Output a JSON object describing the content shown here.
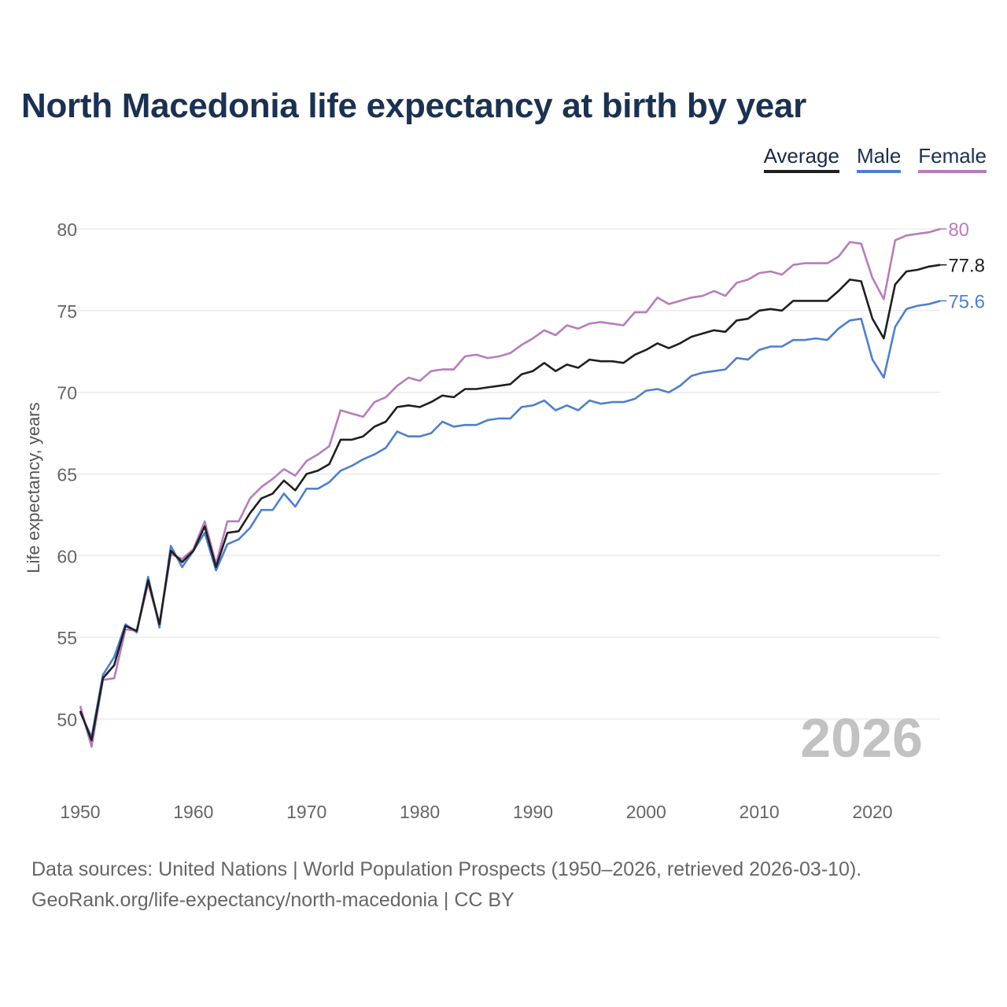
{
  "title": "North Macedonia life expectancy at birth by year",
  "footer": {
    "line1": "Data sources: United Nations | World Population Prospects (1950–2026, retrieved 2026-03-10).",
    "line2": "GeoRank.org/life-expectancy/north-macedonia | CC BY"
  },
  "chart_data": {
    "type": "line",
    "title": "North Macedonia life expectancy at birth by year",
    "xlabel": "",
    "ylabel": "Life expectancy, years",
    "xlim": [
      1950,
      2026
    ],
    "ylim": [
      46,
      82
    ],
    "xticks": [
      1950,
      1960,
      1970,
      1980,
      1990,
      2000,
      2010,
      2020
    ],
    "yticks": [
      50,
      55,
      60,
      65,
      70,
      75,
      80
    ],
    "grid": true,
    "legend_position": "top-right",
    "year_watermark": "2026",
    "x_start": 1950,
    "series": [
      {
        "name": "Average",
        "color": "#1f1f1f",
        "end_label": "77.8",
        "values": [
          50.5,
          48.7,
          52.5,
          53.3,
          55.7,
          55.4,
          58.5,
          55.8,
          60.3,
          59.6,
          60.3,
          61.8,
          59.3,
          61.4,
          61.5,
          62.6,
          63.5,
          63.8,
          64.6,
          64.0,
          65.0,
          65.2,
          65.6,
          67.1,
          67.1,
          67.3,
          67.9,
          68.2,
          69.1,
          69.2,
          69.1,
          69.4,
          69.8,
          69.7,
          70.2,
          70.2,
          70.3,
          70.4,
          70.5,
          71.1,
          71.3,
          71.8,
          71.3,
          71.7,
          71.5,
          72.0,
          71.9,
          71.9,
          71.8,
          72.3,
          72.6,
          73.0,
          72.7,
          73.0,
          73.4,
          73.6,
          73.8,
          73.7,
          74.4,
          74.5,
          75.0,
          75.1,
          75.0,
          75.6,
          75.6,
          75.6,
          75.6,
          76.2,
          76.9,
          76.8,
          74.5,
          73.3,
          76.6,
          77.4,
          77.5,
          77.7,
          77.8
        ]
      },
      {
        "name": "Male",
        "color": "#4f7fcc",
        "end_label": "75.6",
        "values": [
          50.4,
          48.9,
          52.7,
          53.8,
          55.8,
          55.3,
          58.7,
          55.6,
          60.6,
          59.3,
          60.3,
          61.4,
          59.1,
          60.7,
          61.0,
          61.7,
          62.8,
          62.8,
          63.8,
          63.0,
          64.1,
          64.1,
          64.5,
          65.2,
          65.5,
          65.9,
          66.2,
          66.6,
          67.6,
          67.3,
          67.3,
          67.5,
          68.2,
          67.9,
          68.0,
          68.0,
          68.3,
          68.4,
          68.4,
          69.1,
          69.2,
          69.5,
          68.9,
          69.2,
          68.9,
          69.5,
          69.3,
          69.4,
          69.4,
          69.6,
          70.1,
          70.2,
          70.0,
          70.4,
          71.0,
          71.2,
          71.3,
          71.4,
          72.1,
          72.0,
          72.6,
          72.8,
          72.8,
          73.2,
          73.2,
          73.3,
          73.2,
          73.9,
          74.4,
          74.5,
          72.0,
          70.9,
          74.0,
          75.1,
          75.3,
          75.4,
          75.6
        ]
      },
      {
        "name": "Female",
        "color": "#b87cbc",
        "end_label": "80",
        "values": [
          50.8,
          48.3,
          52.4,
          52.5,
          55.5,
          55.4,
          58.3,
          55.8,
          60.1,
          59.8,
          60.4,
          62.1,
          59.5,
          62.1,
          62.1,
          63.5,
          64.2,
          64.7,
          65.3,
          64.9,
          65.8,
          66.2,
          66.7,
          68.9,
          68.7,
          68.5,
          69.4,
          69.7,
          70.4,
          70.9,
          70.7,
          71.3,
          71.4,
          71.4,
          72.2,
          72.3,
          72.1,
          72.2,
          72.4,
          72.9,
          73.3,
          73.8,
          73.5,
          74.1,
          73.9,
          74.2,
          74.3,
          74.2,
          74.1,
          74.9,
          74.9,
          75.8,
          75.4,
          75.6,
          75.8,
          75.9,
          76.2,
          75.9,
          76.7,
          76.9,
          77.3,
          77.4,
          77.2,
          77.8,
          77.9,
          77.9,
          77.9,
          78.3,
          79.2,
          79.1,
          77.0,
          75.7,
          79.3,
          79.6,
          79.7,
          79.8,
          80.0
        ]
      }
    ]
  }
}
